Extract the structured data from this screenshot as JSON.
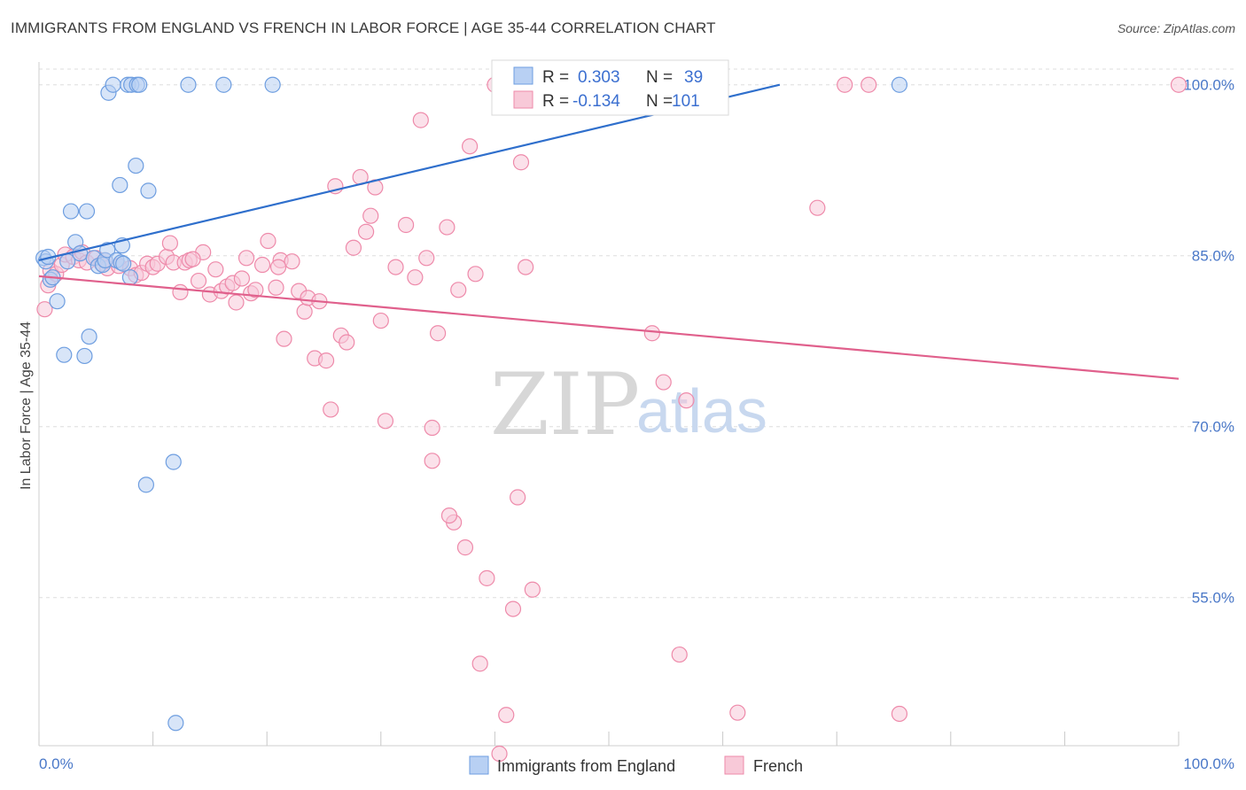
{
  "header": {
    "title": "IMMIGRANTS FROM ENGLAND VS FRENCH IN LABOR FORCE | AGE 35-44 CORRELATION CHART",
    "source": "Source: ZipAtlas.com"
  },
  "watermark": {
    "zip": "ZIP",
    "atlas": "atlas"
  },
  "legend_box": {
    "rows": [
      {
        "r_label": "R =",
        "r_value": "0.303",
        "n_label": "N =",
        "n_value": "39"
      },
      {
        "r_label": "R =",
        "r_value": "-0.134",
        "n_label": "N =",
        "n_value": "101"
      }
    ]
  },
  "chart_data": {
    "type": "scatter",
    "title": "IMMIGRANTS FROM ENGLAND VS FRENCH IN LABOR FORCE | AGE 35-44 CORRELATION CHART",
    "xlabel": "",
    "ylabel": "In Labor Force | Age 35-44",
    "xlim": [
      0,
      100
    ],
    "ylim": [
      42,
      102
    ],
    "x_tick_labels": [
      "0.0%",
      "100.0%"
    ],
    "y_ticks": [
      55,
      70,
      85,
      100
    ],
    "y_tick_labels": [
      "55.0%",
      "70.0%",
      "85.0%",
      "100.0%"
    ],
    "grid": true,
    "legend_position": "bottom",
    "colors": {
      "england": "#6e9ee0",
      "england_fill": "#b8d0f3",
      "french": "#ee8aaa",
      "french_fill": "#f8c9d8",
      "england_line": "#2f6fcc",
      "french_line": "#e0608c",
      "tick_text": "#4a78c8"
    },
    "series": [
      {
        "name": "Immigrants from England",
        "trend": {
          "x": [
            0,
            65
          ],
          "y": [
            84.6,
            100.0
          ]
        },
        "points": [
          [
            0.4,
            84.8
          ],
          [
            0.6,
            84.5
          ],
          [
            0.8,
            84.9
          ],
          [
            1.0,
            82.9
          ],
          [
            1.2,
            83.1
          ],
          [
            1.6,
            81.0
          ],
          [
            2.2,
            76.3
          ],
          [
            2.5,
            84.5
          ],
          [
            2.8,
            88.9
          ],
          [
            3.2,
            86.2
          ],
          [
            3.6,
            85.2
          ],
          [
            4.0,
            76.2
          ],
          [
            4.2,
            88.9
          ],
          [
            4.4,
            77.9
          ],
          [
            4.8,
            84.8
          ],
          [
            5.2,
            84.1
          ],
          [
            5.6,
            84.2
          ],
          [
            5.8,
            84.6
          ],
          [
            6.0,
            85.5
          ],
          [
            6.1,
            99.3
          ],
          [
            6.5,
            100.0
          ],
          [
            6.8,
            84.6
          ],
          [
            7.1,
            91.2
          ],
          [
            7.2,
            84.4
          ],
          [
            7.3,
            85.9
          ],
          [
            7.4,
            84.3
          ],
          [
            7.8,
            100.0
          ],
          [
            8.0,
            83.1
          ],
          [
            8.1,
            100.0
          ],
          [
            8.5,
            92.9
          ],
          [
            8.6,
            100.0
          ],
          [
            8.8,
            100.0
          ],
          [
            9.4,
            64.9
          ],
          [
            9.6,
            90.7
          ],
          [
            11.8,
            66.9
          ],
          [
            12.0,
            44.0
          ],
          [
            13.1,
            100.0
          ],
          [
            16.2,
            100.0
          ],
          [
            20.5,
            100.0
          ],
          [
            75.5,
            100.0
          ]
        ]
      },
      {
        "name": "French",
        "trend": {
          "x": [
            0,
            100
          ],
          "y": [
            83.2,
            74.2
          ]
        },
        "points": [
          [
            0.5,
            80.3
          ],
          [
            0.8,
            82.4
          ],
          [
            1.0,
            83.7
          ],
          [
            1.5,
            83.4
          ],
          [
            2.0,
            84.2
          ],
          [
            2.3,
            85.1
          ],
          [
            3.0,
            84.9
          ],
          [
            3.5,
            84.6
          ],
          [
            3.8,
            85.3
          ],
          [
            4.2,
            84.4
          ],
          [
            5.0,
            84.8
          ],
          [
            5.5,
            84.3
          ],
          [
            6.0,
            83.9
          ],
          [
            7.0,
            84.1
          ],
          [
            8.0,
            83.9
          ],
          [
            8.5,
            83.3
          ],
          [
            9.0,
            83.5
          ],
          [
            9.5,
            84.3
          ],
          [
            10.0,
            84.0
          ],
          [
            10.4,
            84.3
          ],
          [
            11.2,
            84.9
          ],
          [
            11.5,
            86.1
          ],
          [
            11.8,
            84.4
          ],
          [
            12.4,
            81.8
          ],
          [
            12.8,
            84.4
          ],
          [
            13.2,
            84.6
          ],
          [
            14.0,
            82.8
          ],
          [
            14.4,
            85.3
          ],
          [
            15.0,
            81.6
          ],
          [
            15.5,
            83.8
          ],
          [
            16.0,
            81.9
          ],
          [
            16.5,
            82.3
          ],
          [
            17.0,
            82.6
          ],
          [
            17.3,
            80.9
          ],
          [
            17.8,
            83.0
          ],
          [
            18.2,
            84.8
          ],
          [
            18.6,
            81.7
          ],
          [
            19.0,
            82.0
          ],
          [
            19.6,
            84.2
          ],
          [
            20.1,
            86.3
          ],
          [
            20.8,
            82.2
          ],
          [
            21.2,
            84.6
          ],
          [
            21.5,
            77.7
          ],
          [
            22.2,
            84.5
          ],
          [
            22.8,
            81.9
          ],
          [
            23.3,
            80.1
          ],
          [
            23.6,
            81.3
          ],
          [
            24.2,
            76.0
          ],
          [
            24.6,
            81.0
          ],
          [
            25.2,
            75.8
          ],
          [
            25.6,
            71.5
          ],
          [
            26.0,
            91.1
          ],
          [
            26.5,
            78.0
          ],
          [
            27.0,
            77.4
          ],
          [
            27.6,
            85.7
          ],
          [
            28.2,
            91.9
          ],
          [
            28.7,
            87.1
          ],
          [
            29.1,
            88.5
          ],
          [
            29.5,
            91.0
          ],
          [
            30.0,
            79.3
          ],
          [
            30.4,
            70.5
          ],
          [
            31.3,
            84.0
          ],
          [
            32.2,
            87.7
          ],
          [
            33.0,
            83.1
          ],
          [
            33.5,
            96.9
          ],
          [
            34.0,
            84.8
          ],
          [
            34.5,
            67.0
          ],
          [
            35.0,
            78.2
          ],
          [
            35.8,
            87.5
          ],
          [
            36.4,
            61.6
          ],
          [
            36.8,
            82.0
          ],
          [
            37.4,
            59.4
          ],
          [
            37.8,
            94.6
          ],
          [
            38.3,
            83.4
          ],
          [
            38.7,
            49.2
          ],
          [
            39.3,
            56.7
          ],
          [
            40.0,
            100.0
          ],
          [
            40.4,
            41.3
          ],
          [
            41.0,
            44.7
          ],
          [
            41.6,
            54.0
          ],
          [
            42.0,
            63.8
          ],
          [
            42.3,
            93.2
          ],
          [
            42.7,
            84.0
          ],
          [
            43.3,
            55.7
          ],
          [
            46.0,
            100.0
          ],
          [
            53.8,
            78.2
          ],
          [
            54.8,
            73.9
          ],
          [
            56.2,
            50.0
          ],
          [
            56.8,
            72.3
          ],
          [
            57.5,
            100.0
          ],
          [
            61.3,
            44.9
          ],
          [
            68.3,
            89.2
          ],
          [
            70.7,
            100.0
          ],
          [
            72.8,
            100.0
          ],
          [
            75.5,
            44.8
          ],
          [
            100.0,
            100.0
          ],
          [
            34.5,
            69.9
          ],
          [
            36.0,
            62.2
          ],
          [
            21.0,
            84.0
          ],
          [
            5.8,
            84.6
          ],
          [
            13.5,
            84.7
          ]
        ]
      }
    ]
  }
}
